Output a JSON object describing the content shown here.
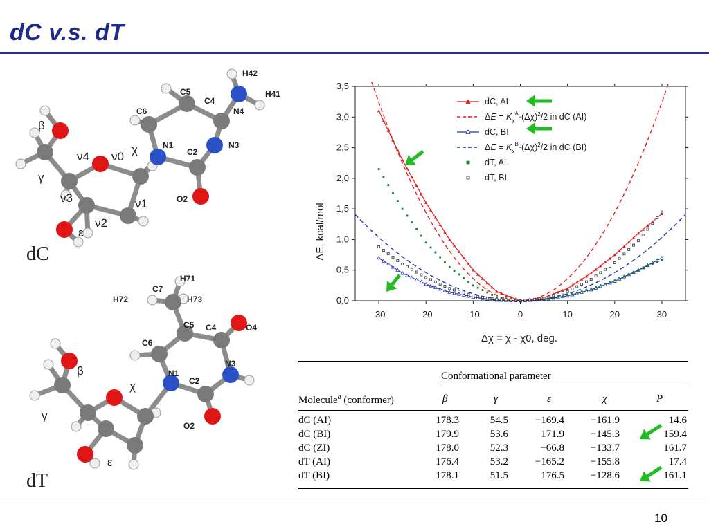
{
  "slide": {
    "title": "dC v.s. dT",
    "page_number": "10"
  },
  "molecules": {
    "dC": {
      "name": "dC",
      "atom_labels": [
        "H42",
        "H41",
        "C5",
        "C4",
        "N4",
        "C6",
        "N1",
        "C2",
        "N3",
        "O2"
      ],
      "angle_labels": {
        "beta": "β",
        "gamma": "γ",
        "nu4": "ν4",
        "nu0": "ν0",
        "nu3": "ν3",
        "nu2": "ν2",
        "nu1": "ν1",
        "chi": "χ",
        "epsilon": "ε"
      }
    },
    "dT": {
      "name": "dT",
      "atom_labels": [
        "H71",
        "C7",
        "H72",
        "H73",
        "C5",
        "C4",
        "O4",
        "C6",
        "N3",
        "N1",
        "C2",
        "O2"
      ],
      "angle_labels": {
        "beta": "β",
        "gamma": "γ",
        "chi": "χ",
        "epsilon": "ε"
      }
    }
  },
  "chart_data": {
    "type": "line",
    "xlabel": "Δχ = χ - χ0, deg.",
    "ylabel": "ΔE, kcal/mol",
    "xlim": [
      -35,
      35
    ],
    "ylim": [
      0,
      3.5
    ],
    "x_ticks": [
      "-30",
      "-20",
      "-10",
      "0",
      "10",
      "20",
      "30"
    ],
    "x_tick_values": [
      -30,
      -20,
      -10,
      0,
      10,
      20,
      30
    ],
    "y_ticks": [
      "0,0",
      "0,5",
      "1,0",
      "1,5",
      "2,0",
      "2,5",
      "3,0",
      "3,5"
    ],
    "y_tick_values": [
      0,
      0.5,
      1.0,
      1.5,
      2.0,
      2.5,
      3.0,
      3.5
    ],
    "legend_position": "top-right",
    "series": [
      {
        "name": "dC, AI",
        "style": "line-triangle",
        "color": "#e02020",
        "x": [
          -30,
          -25,
          -20,
          -15,
          -10,
          -5,
          0,
          5,
          10,
          15,
          20,
          25,
          30
        ],
        "y": [
          3.1,
          2.3,
          1.6,
          1.0,
          0.5,
          0.15,
          0.0,
          0.05,
          0.2,
          0.45,
          0.75,
          1.1,
          1.42
        ]
      },
      {
        "name": "ΔE = K_χ^A·(Δχ)^2/2 in dC (AI)",
        "style": "dashed",
        "color": "#e02020",
        "k": 0.0036
      },
      {
        "name": "dC, BI",
        "style": "line-triangle-open",
        "color": "#2233aa",
        "x": [
          -30,
          -25,
          -20,
          -15,
          -10,
          -5,
          0,
          5,
          10,
          15,
          20,
          25,
          30
        ],
        "y": [
          0.7,
          0.45,
          0.27,
          0.14,
          0.06,
          0.01,
          0.0,
          0.02,
          0.08,
          0.18,
          0.32,
          0.5,
          0.7
        ]
      },
      {
        "name": "ΔE = K_χ^B·(Δχ)^2/2 in dC (BI)",
        "style": "dashed",
        "color": "#2233aa",
        "k": 0.00115
      },
      {
        "name": "dT, AI",
        "style": "dots-filled",
        "color": "#17852a",
        "x": [
          -30,
          -25,
          -20,
          -15,
          -10,
          -5,
          0,
          5,
          10,
          15,
          20,
          25,
          30
        ],
        "y": [
          2.15,
          1.5,
          0.95,
          0.55,
          0.25,
          0.06,
          0.0,
          0.02,
          0.09,
          0.2,
          0.33,
          0.5,
          0.67
        ]
      },
      {
        "name": "dT, BI",
        "style": "dots-open",
        "color": "#333333",
        "x": [
          -30,
          -25,
          -20,
          -15,
          -10,
          -5,
          0,
          5,
          10,
          15,
          20,
          25,
          30
        ],
        "y": [
          0.88,
          0.6,
          0.38,
          0.2,
          0.08,
          0.02,
          0.0,
          0.04,
          0.15,
          0.35,
          0.62,
          0.98,
          1.45
        ]
      }
    ]
  },
  "table": {
    "group_header": "Conformational parameter",
    "col0_header": "Molecule",
    "col0_sup": "a",
    "col0_tail": " (conformer)",
    "param_headers": [
      "β",
      "γ",
      "ε",
      "χ",
      "P"
    ],
    "rows": [
      [
        "dC (AI)",
        "178.3",
        "54.5",
        "−169.4",
        "−161.9",
        "14.6"
      ],
      [
        "dC (BI)",
        "179.9",
        "53.6",
        "171.9",
        "−145.3",
        "159.4"
      ],
      [
        "dC (ZI)",
        "178.0",
        "52.3",
        "−66.8",
        "−133.7",
        "161.7"
      ],
      [
        "dT (AI)",
        "176.4",
        "53.2",
        "−165.2",
        "−155.8",
        "17.4"
      ],
      [
        "dT (BI)",
        "178.1",
        "51.5",
        "176.5",
        "−128.6",
        "161.1"
      ]
    ]
  },
  "colors": {
    "title": "#1f2a8a",
    "arrow": "#22bb22",
    "carbon": "#7a7a7a",
    "oxygen": "#e01515",
    "nitrogen": "#2a50c8",
    "hydrogen": "#f2f2f2"
  },
  "icons": [
    "green-arrow-icon"
  ]
}
